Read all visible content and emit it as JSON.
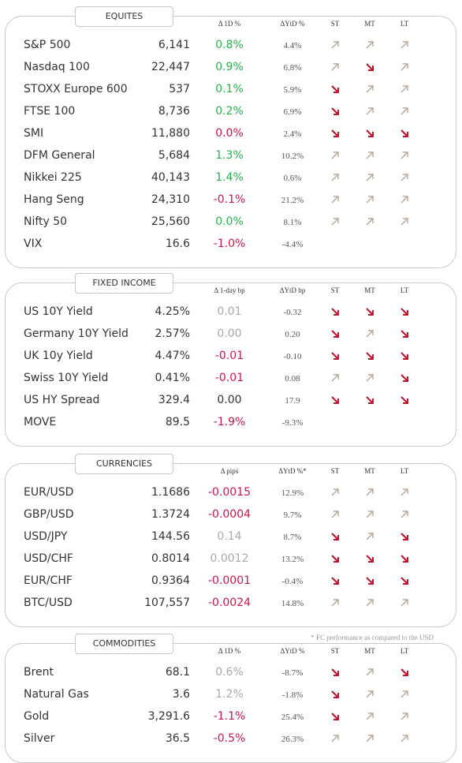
{
  "sections": [
    {
      "title": "EQUITES",
      "headers": [
        "Δ 1D %",
        "ΔYtD %",
        "ST",
        "MT",
        "LT"
      ],
      "rows": [
        {
          "name": "S&P 500",
          "value": "6,141",
          "change": "0.8%",
          "change_color": "#27b14a",
          "ytd": "4.4%",
          "st": "up",
          "mt": "up",
          "lt": "up"
        },
        {
          "name": "Nasdaq 100",
          "value": "22,447",
          "change": "0.9%",
          "change_color": "#27b14a",
          "ytd": "6.8%",
          "st": "up",
          "mt": "down",
          "lt": "up"
        },
        {
          "name": "STOXX Europe 600",
          "value": "537",
          "change": "0.1%",
          "change_color": "#27b14a",
          "ytd": "5.9%",
          "st": "down",
          "mt": "up",
          "lt": "up"
        },
        {
          "name": "FTSE 100",
          "value": "8,736",
          "change": "0.2%",
          "change_color": "#27b14a",
          "ytd": "6.9%",
          "st": "down",
          "mt": "up",
          "lt": "up"
        },
        {
          "name": "SMI",
          "value": "11,880",
          "change": "0.0%",
          "change_color": "#c8174a",
          "ytd": "2.4%",
          "st": "down",
          "mt": "down",
          "lt": "down"
        },
        {
          "name": "DFM General",
          "value": "5,684",
          "change": "1.3%",
          "change_color": "#27b14a",
          "ytd": "10.2%",
          "st": "up",
          "mt": "up",
          "lt": "up"
        },
        {
          "name": "Nikkei 225",
          "value": "40,143",
          "change": "1.4%",
          "change_color": "#27b14a",
          "ytd": "0.6%",
          "st": "up",
          "mt": "up",
          "lt": "up"
        },
        {
          "name": "Hang Seng",
          "value": "24,310",
          "change": "-0.1%",
          "change_color": "#c8174a",
          "ytd": "21.2%",
          "st": "up",
          "mt": "up",
          "lt": "up"
        },
        {
          "name": "Nifty  50",
          "value": "25,560",
          "change": "0.0%",
          "change_color": "#27b14a",
          "ytd": "8.1%",
          "st": "up",
          "mt": "up",
          "lt": "up"
        },
        {
          "name": "VIX",
          "value": "16.6",
          "change": "-1.0%",
          "change_color": "#c8174a",
          "ytd": "-4.4%",
          "st": null,
          "mt": null,
          "lt": null
        }
      ]
    },
    {
      "title": "FIXED INCOME",
      "headers": [
        "Δ 1-day bp",
        "ΔYtD bp",
        "ST",
        "MT",
        "LT"
      ],
      "rows": [
        {
          "name": "US 10Y Yield",
          "value": "4.25%",
          "change": "0.01",
          "change_color": "#aaaaaa",
          "ytd": "-0.32",
          "st": "down",
          "mt": "down",
          "lt": "down"
        },
        {
          "name": "Germany 10Y Yield",
          "value": "2.57%",
          "change": "0.00",
          "change_color": "#aaaaaa",
          "ytd": "0.20",
          "st": "down",
          "mt": "up",
          "lt": "down"
        },
        {
          "name": "UK 10y Yield",
          "value": "4.47%",
          "change": "-0.01",
          "change_color": "#c8174a",
          "ytd": "-0.10",
          "st": "down",
          "mt": "down",
          "lt": "down"
        },
        {
          "name": "Swiss 10Y Yield",
          "value": "0.41%",
          "change": "-0.01",
          "change_color": "#c8174a",
          "ytd": "0.08",
          "st": "up",
          "mt": "up",
          "lt": "down"
        },
        {
          "name": "US HY Spread",
          "value": "329.4",
          "change": "0.00",
          "change_color": "#333333",
          "ytd": "17.9",
          "st": "down",
          "mt": "down",
          "lt": "down"
        },
        {
          "name": "MOVE",
          "value": "89.5",
          "change": "-1.9%",
          "change_color": "#c8174a",
          "ytd": "-9.3%",
          "st": null,
          "mt": null,
          "lt": null
        }
      ]
    },
    {
      "title": "CURRENCIES",
      "headers": [
        "Δ pips",
        "ΔYtD %*",
        "ST",
        "MT",
        "LT"
      ],
      "footnote": "* FC performance as compared to the USD",
      "rows": [
        {
          "name": "EUR/USD",
          "value": "1.1686",
          "change": "-0.0015",
          "change_color": "#c8174a",
          "ytd": "12.9%",
          "st": "up",
          "mt": "up",
          "lt": "up"
        },
        {
          "name": "GBP/USD",
          "value": "1.3724",
          "change": "-0.0004",
          "change_color": "#c8174a",
          "ytd": "9.7%",
          "st": "up",
          "mt": "up",
          "lt": "up"
        },
        {
          "name": "USD/JPY",
          "value": "144.56",
          "change": "0.14",
          "change_color": "#aaaaaa",
          "ytd": "8.7%",
          "st": "down",
          "mt": "up",
          "lt": "down"
        },
        {
          "name": "USD/CHF",
          "value": "0.8014",
          "change": "0.0012",
          "change_color": "#aaaaaa",
          "ytd": "13.2%",
          "st": "down",
          "mt": "down",
          "lt": "down"
        },
        {
          "name": "EUR/CHF",
          "value": "0.9364",
          "change": "-0.0001",
          "change_color": "#c8174a",
          "ytd": "-0.4%",
          "st": "down",
          "mt": "down",
          "lt": "down"
        },
        {
          "name": "BTC/USD",
          "value": "107,557",
          "change": "-0.0024",
          "change_color": "#c8174a",
          "ytd": "14.8%",
          "st": "up",
          "mt": "up",
          "lt": "up"
        }
      ]
    },
    {
      "title": "COMMODITIES",
      "headers": [
        "Δ 1D %",
        "ΔYtD %",
        "ST",
        "MT",
        "LT"
      ],
      "rows": [
        {
          "name": "Brent",
          "value": "68.1",
          "change": "0.6%",
          "change_color": "#aaaaaa",
          "ytd": "-8.7%",
          "st": "down",
          "mt": "up",
          "lt": "down"
        },
        {
          "name": "Natural Gas",
          "value": "3.6",
          "change": "1.2%",
          "change_color": "#aaaaaa",
          "ytd": "-1.8%",
          "st": "down",
          "mt": "up",
          "lt": "up"
        },
        {
          "name": "Gold",
          "value": "3,291.6",
          "change": "-1.1%",
          "change_color": "#c8174a",
          "ytd": "25.4%",
          "st": "down",
          "mt": "up",
          "lt": "up"
        },
        {
          "name": "Silver",
          "value": "36.5",
          "change": "-0.5%",
          "change_color": "#c8174a",
          "ytd": "26.3%",
          "st": "up",
          "mt": "up",
          "lt": "up"
        }
      ]
    }
  ]
}
